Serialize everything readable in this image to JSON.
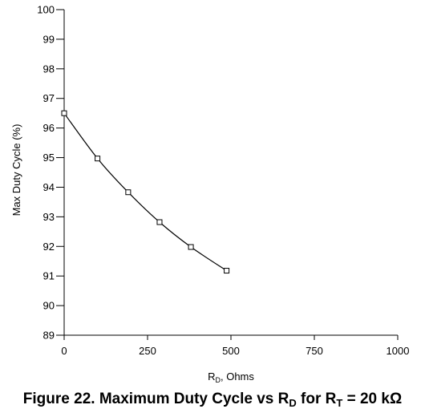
{
  "chart_data": {
    "type": "line",
    "title": "",
    "xlabel": {
      "main": "R",
      "sub": "D",
      "rest": ", Ohms"
    },
    "ylabel": "Max Duty Cycle (%)",
    "xlim": [
      0,
      1000
    ],
    "ylim": [
      89,
      100
    ],
    "xticks": [
      0,
      250,
      500,
      750,
      1000
    ],
    "yticks": [
      89,
      90,
      91,
      92,
      93,
      94,
      95,
      96,
      97,
      98,
      99,
      100
    ],
    "grid": false,
    "series": [
      {
        "marker": "square",
        "x": [
          0,
          100,
          192,
          286,
          380,
          487
        ],
        "y": [
          96.5,
          94.97,
          93.83,
          92.82,
          91.98,
          91.18
        ]
      }
    ]
  },
  "caption": {
    "prefix": "Figure 22.  Maximum Duty Cycle vs R",
    "sub1": "D",
    "mid": " for R",
    "sub2": "T",
    "suffix": " = 20 kΩ"
  }
}
